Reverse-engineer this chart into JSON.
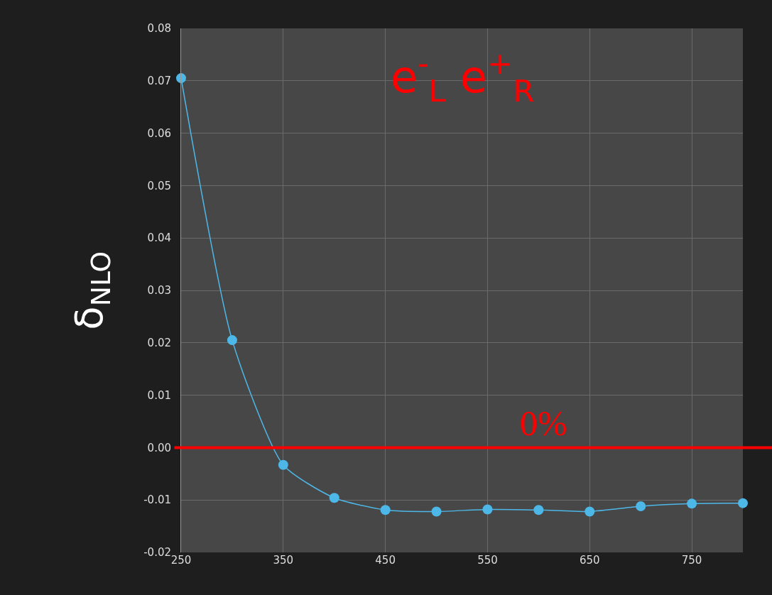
{
  "chart_data": {
    "type": "line",
    "ylabel": "δ$_{NLO}$",
    "annotations": [
      "e$^{-}$$_{L}$ e$^{+}$$_{R}$"
    ],
    "x": [
      250,
      300,
      350,
      400,
      450,
      500,
      550,
      600,
      650,
      700,
      750,
      800
    ],
    "series": [
      {
        "color": "#4db8e8",
        "values": [
          0.0705,
          0.0205,
          -0.0033,
          -0.0096,
          -0.0119,
          -0.0122,
          -0.0118,
          -0.0119,
          -0.0122,
          -0.0112,
          -0.0107,
          -0.0106
        ]
      }
    ],
    "xlim": [
      250,
      800
    ],
    "xticks": [
      250,
      350,
      450,
      550,
      650,
      750
    ],
    "ylim": [
      -0.02,
      0.08
    ],
    "yticks": [
      {
        "value": -0.02,
        "label": "-0.02"
      },
      {
        "value": -0.01,
        "label": "-0.01"
      },
      {
        "value": 0,
        "label": "0.00"
      },
      {
        "value": 0.01,
        "label": "0.01"
      },
      {
        "value": 0.02,
        "label": "0.02"
      },
      {
        "value": 0.03,
        "label": "0.03"
      },
      {
        "value": 0.04,
        "label": "0.04"
      },
      {
        "value": 0.05,
        "label": "0.05"
      },
      {
        "value": 0.06,
        "label": "0.06"
      },
      {
        "value": 0.07,
        "label": "0.07"
      },
      {
        "value": 0.08,
        "label": "0.08"
      }
    ],
    "ref_lines": [
      {
        "axis": "y",
        "value": 0,
        "label": "0%",
        "color": "#ff0000"
      }
    ],
    "grid": true,
    "marker": "circle",
    "line_style": "solid"
  }
}
